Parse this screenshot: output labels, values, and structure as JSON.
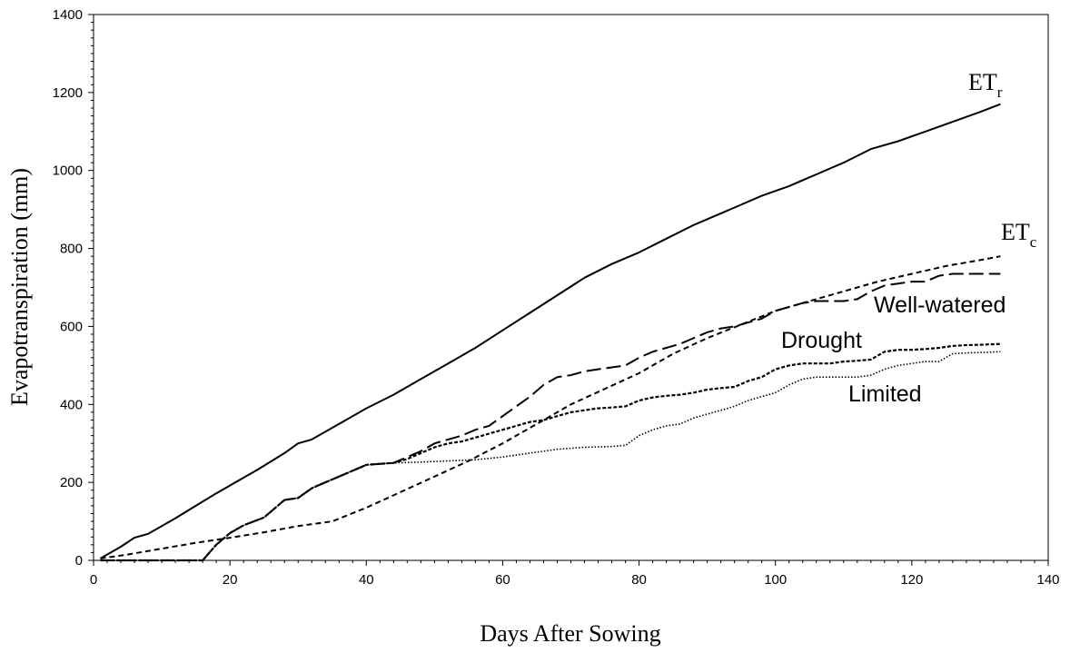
{
  "chart_data": {
    "type": "line",
    "title": "",
    "xlabel": "Days After Sowing",
    "ylabel": "Evapotranspiration (mm)",
    "xlim": [
      0,
      140
    ],
    "ylim": [
      0,
      1400
    ],
    "xticks": [
      0,
      20,
      40,
      60,
      80,
      100,
      120,
      140
    ],
    "yticks": [
      0,
      200,
      400,
      600,
      800,
      1000,
      1200,
      1400
    ],
    "grid": false,
    "legend": "none",
    "series": [
      {
        "id": "etr",
        "label_main": "ET",
        "label_sub": "r",
        "style": "solid",
        "color": "#000000",
        "x": [
          1,
          4,
          6,
          8,
          10,
          12,
          15,
          18,
          20,
          24,
          28,
          30,
          32,
          36,
          40,
          44,
          48,
          52,
          56,
          60,
          64,
          68,
          72,
          76,
          80,
          84,
          88,
          92,
          94,
          98,
          102,
          106,
          110,
          114,
          118,
          122,
          126,
          130,
          133
        ],
        "y": [
          5,
          35,
          58,
          68,
          88,
          108,
          140,
          172,
          192,
          232,
          275,
          300,
          310,
          350,
          390,
          425,
          465,
          505,
          545,
          590,
          635,
          680,
          725,
          760,
          790,
          825,
          860,
          890,
          905,
          935,
          960,
          990,
          1020,
          1055,
          1075,
          1100,
          1125,
          1150,
          1170
        ]
      },
      {
        "id": "etc",
        "label_main": "ET",
        "label_sub": "c",
        "style": "short-dash",
        "color": "#000000",
        "x": [
          1,
          5,
          10,
          15,
          20,
          25,
          30,
          35,
          40,
          45,
          50,
          55,
          60,
          65,
          70,
          75,
          80,
          85,
          90,
          95,
          100,
          105,
          110,
          115,
          120,
          125,
          130,
          133
        ],
        "y": [
          5,
          15,
          30,
          45,
          58,
          72,
          88,
          100,
          135,
          175,
          215,
          255,
          300,
          350,
          400,
          440,
          480,
          530,
          570,
          605,
          640,
          665,
          690,
          715,
          735,
          755,
          770,
          780
        ]
      },
      {
        "id": "well-watered",
        "label": "Well-watered",
        "style": "long-dash",
        "color": "#000000",
        "x": [
          1,
          16,
          18,
          20,
          22,
          25,
          28,
          30,
          32,
          34,
          36,
          38,
          40,
          44,
          46,
          48,
          50,
          52,
          54,
          56,
          58,
          60,
          62,
          64,
          66,
          68,
          70,
          72,
          74,
          76,
          78,
          80,
          82,
          84,
          86,
          88,
          90,
          92,
          94,
          96,
          98,
          100,
          102,
          104,
          106,
          108,
          110,
          112,
          114,
          116,
          118,
          120,
          122,
          124,
          126,
          128,
          130,
          133
        ],
        "y": [
          0,
          0,
          40,
          70,
          90,
          110,
          155,
          160,
          185,
          200,
          215,
          230,
          245,
          250,
          265,
          280,
          300,
          310,
          320,
          335,
          345,
          370,
          395,
          420,
          450,
          470,
          475,
          485,
          490,
          495,
          500,
          520,
          535,
          545,
          555,
          570,
          585,
          595,
          600,
          610,
          620,
          640,
          650,
          660,
          665,
          665,
          665,
          670,
          690,
          705,
          710,
          715,
          715,
          730,
          735,
          735,
          735,
          735
        ]
      },
      {
        "id": "drought",
        "label": "Drought",
        "style": "fine-dash",
        "color": "#000000",
        "x": [
          1,
          16,
          18,
          20,
          22,
          25,
          28,
          30,
          32,
          34,
          36,
          38,
          40,
          44,
          46,
          48,
          50,
          52,
          54,
          56,
          58,
          60,
          62,
          64,
          66,
          68,
          70,
          72,
          74,
          76,
          78,
          80,
          82,
          84,
          86,
          88,
          90,
          92,
          94,
          96,
          98,
          100,
          102,
          104,
          106,
          108,
          110,
          112,
          114,
          116,
          118,
          120,
          122,
          124,
          126,
          128,
          130,
          133
        ],
        "y": [
          0,
          0,
          40,
          70,
          90,
          110,
          155,
          160,
          185,
          200,
          215,
          230,
          245,
          250,
          260,
          275,
          290,
          300,
          305,
          315,
          325,
          335,
          345,
          355,
          360,
          370,
          380,
          385,
          390,
          392,
          395,
          410,
          418,
          422,
          425,
          430,
          438,
          442,
          445,
          460,
          470,
          490,
          500,
          505,
          505,
          505,
          510,
          512,
          515,
          535,
          540,
          540,
          542,
          545,
          550,
          552,
          553,
          555
        ]
      },
      {
        "id": "limited",
        "label": "Limited",
        "style": "dotted",
        "color": "#000000",
        "x": [
          1,
          16,
          18,
          20,
          22,
          25,
          28,
          30,
          32,
          34,
          36,
          38,
          40,
          44,
          48,
          52,
          56,
          60,
          64,
          68,
          72,
          76,
          78,
          80,
          82,
          84,
          86,
          88,
          90,
          92,
          94,
          96,
          98,
          100,
          102,
          104,
          106,
          108,
          110,
          112,
          114,
          116,
          118,
          120,
          122,
          124,
          126,
          128,
          130,
          133
        ],
        "y": [
          0,
          0,
          40,
          70,
          90,
          110,
          155,
          160,
          185,
          200,
          215,
          230,
          245,
          250,
          252,
          255,
          258,
          265,
          275,
          285,
          290,
          292,
          295,
          320,
          335,
          345,
          350,
          365,
          375,
          385,
          395,
          410,
          420,
          430,
          450,
          465,
          470,
          470,
          470,
          470,
          475,
          490,
          500,
          505,
          510,
          510,
          530,
          532,
          533,
          535
        ]
      }
    ]
  }
}
